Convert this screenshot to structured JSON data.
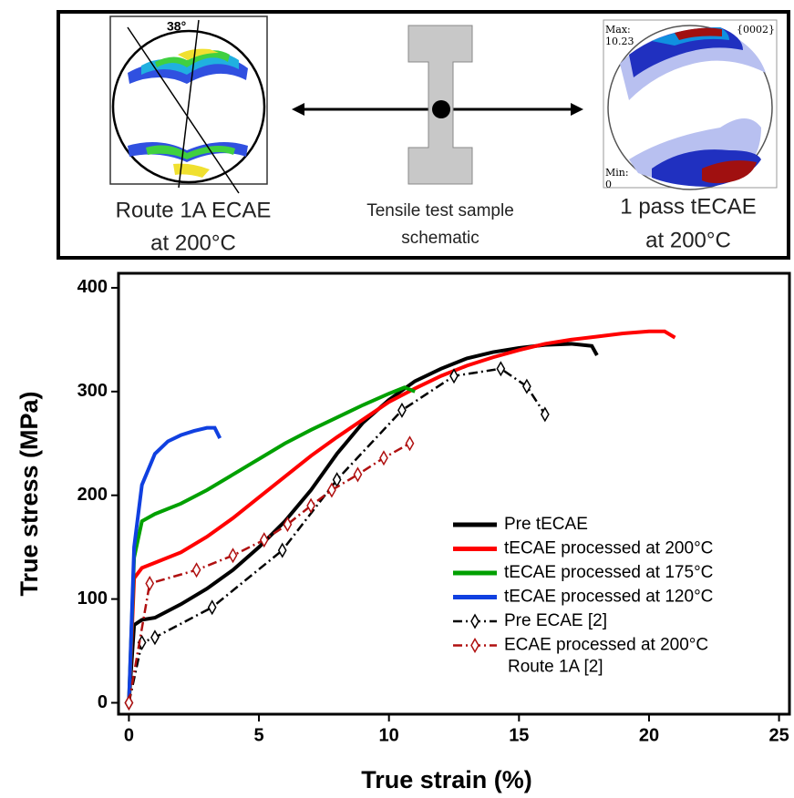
{
  "schematic": {
    "left": {
      "angle": "38°",
      "caption": [
        "Route 1A ECAE",
        "at 200°C"
      ]
    },
    "middle": {
      "caption": [
        "Tensile test sample",
        "schematic"
      ]
    },
    "right": {
      "max_label": "Max:",
      "max_value": "10.23",
      "plane": "{0002}",
      "min_label": "Min:",
      "min_value": "0",
      "caption": [
        "1 pass tECAE",
        "at 200°C"
      ]
    }
  },
  "chart_data": {
    "type": "line",
    "x_label": "True strain (%)",
    "y_label": "True stress (MPa)",
    "xlim": [
      -0.4,
      25.4
    ],
    "ylim": [
      -11,
      414
    ],
    "xticks": [
      0,
      5,
      10,
      15,
      20,
      25
    ],
    "yticks": [
      0,
      100,
      200,
      300,
      400
    ],
    "grid": false,
    "legend": "lower right",
    "series": [
      {
        "name": "Pre tECAE",
        "color": "#000000",
        "line_style": "solid",
        "x": [
          0,
          0.2,
          0.5,
          1,
          2,
          3,
          4,
          5,
          6,
          7,
          8,
          9,
          10,
          11,
          12,
          13,
          14,
          15,
          16,
          17,
          17.8,
          18
        ],
        "values": [
          0,
          75,
          80,
          82,
          95,
          110,
          128,
          150,
          175,
          205,
          240,
          270,
          292,
          310,
          322,
          332,
          338,
          342,
          345,
          346,
          344,
          335
        ]
      },
      {
        "name": "tECAE processed at 200°C",
        "color": "#ff0000",
        "line_style": "solid",
        "x": [
          0,
          0.2,
          0.5,
          1,
          2,
          3,
          4,
          5,
          6,
          7,
          8,
          9,
          10,
          11,
          12,
          13,
          14,
          15,
          16,
          17,
          18,
          19,
          20,
          20.6,
          21
        ],
        "values": [
          0,
          120,
          130,
          135,
          145,
          160,
          178,
          198,
          218,
          238,
          256,
          273,
          290,
          303,
          315,
          325,
          333,
          340,
          346,
          350,
          353,
          356,
          358,
          358,
          352
        ]
      },
      {
        "name": "tECAE processed at 175°C",
        "color": "#00a000",
        "line_style": "solid",
        "x": [
          0,
          0.2,
          0.5,
          1,
          2,
          3,
          4,
          5,
          6,
          7,
          8,
          9,
          10,
          10.6,
          11
        ],
        "values": [
          0,
          140,
          175,
          182,
          192,
          205,
          220,
          235,
          250,
          263,
          275,
          287,
          298,
          304,
          300
        ]
      },
      {
        "name": "tECAE processed at 120°C",
        "color": "#1040e0",
        "line_style": "solid",
        "x": [
          0,
          0.2,
          0.5,
          1,
          1.5,
          2,
          2.5,
          3,
          3.3,
          3.5
        ],
        "values": [
          0,
          150,
          210,
          240,
          252,
          258,
          262,
          265,
          265,
          255
        ]
      },
      {
        "name": "Pre ECAE [2]",
        "color": "#000000",
        "line_style": "dashdot",
        "marker": "diamond",
        "x": [
          0,
          0.5,
          1,
          3.2,
          5.9,
          8,
          10.5,
          12.5,
          14.3,
          15.3,
          16
        ],
        "values": [
          0,
          58,
          63,
          92,
          147,
          215,
          282,
          315,
          322,
          305,
          278
        ]
      },
      {
        "name": "ECAE processed at 200°C\nRoute 1A [2]",
        "color": "#b01010",
        "line_style": "dashdot",
        "marker": "diamond",
        "x": [
          0,
          0.8,
          2.6,
          4,
          5.2,
          6.1,
          7,
          7.8,
          8.8,
          9.8,
          10.8
        ],
        "values": [
          0,
          115,
          128,
          142,
          157,
          172,
          190,
          205,
          220,
          236,
          250
        ]
      }
    ]
  }
}
